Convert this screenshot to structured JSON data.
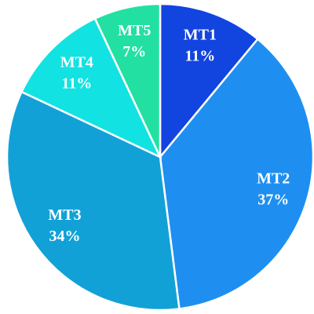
{
  "chart_data": {
    "type": "pie",
    "categories": [
      "MT1",
      "MT2",
      "MT3",
      "MT4",
      "MT5"
    ],
    "values": [
      11,
      37,
      34,
      11,
      7
    ],
    "value_labels": [
      "11%",
      "37%",
      "34%",
      "11%",
      "7%"
    ],
    "colors": [
      "#1244e0",
      "#1e8ff0",
      "#12a1d6",
      "#12e2e2",
      "#22e0a2"
    ]
  }
}
